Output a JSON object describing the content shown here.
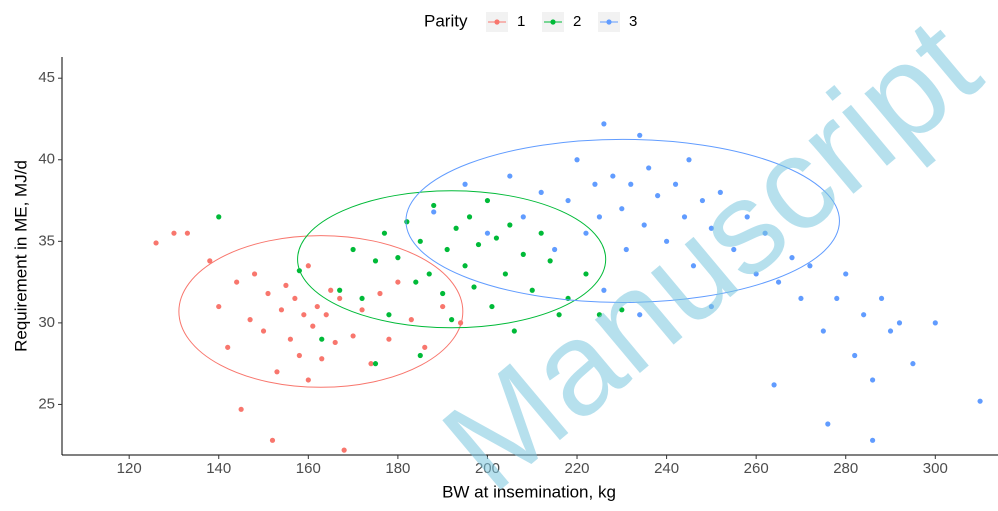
{
  "chart_data": {
    "type": "scatter",
    "x_label": "BW at insemination, kg",
    "y_label": "Requirement in ME, MJ/d",
    "legend_title": "Parity",
    "legend_position": "top",
    "watermark": "Manuscript",
    "xlim": [
      105,
      314
    ],
    "ylim": [
      21.9,
      46.3
    ],
    "xticks": [
      120,
      140,
      160,
      180,
      200,
      220,
      240,
      260,
      280,
      300
    ],
    "yticks": [
      25,
      30,
      35,
      40,
      45
    ],
    "grid": false,
    "series": [
      {
        "name": "1",
        "color": "#F8766D",
        "x": [
          126,
          130,
          133,
          138,
          140,
          142,
          144,
          145,
          147,
          148,
          150,
          151,
          152,
          153,
          154,
          155,
          156,
          157,
          158,
          159,
          160,
          160,
          161,
          162,
          163,
          164,
          165,
          166,
          167,
          168,
          170,
          172,
          174,
          176,
          178,
          180,
          183,
          186,
          190,
          194
        ],
        "values": [
          34.9,
          35.5,
          35.5,
          33.8,
          31.0,
          28.5,
          32.5,
          24.7,
          30.2,
          33.0,
          29.5,
          31.8,
          22.8,
          27.0,
          30.8,
          32.3,
          29.0,
          31.5,
          28.0,
          30.5,
          33.5,
          26.5,
          29.8,
          31.0,
          27.8,
          30.5,
          32.0,
          28.8,
          31.5,
          22.2,
          29.2,
          30.8,
          27.5,
          31.8,
          29.0,
          32.5,
          30.2,
          28.5,
          31.0,
          30.0
        ],
        "ellipse": {
          "cx": 162.8,
          "cy": 30.7,
          "rx": 31.7,
          "ry": 4.65
        }
      },
      {
        "name": "2",
        "color": "#00BA38",
        "x": [
          140,
          158,
          163,
          167,
          170,
          172,
          175,
          177,
          178,
          180,
          182,
          184,
          185,
          187,
          188,
          190,
          191,
          192,
          193,
          195,
          196,
          197,
          198,
          200,
          201,
          202,
          204,
          205,
          206,
          208,
          210,
          212,
          214,
          216,
          218,
          222,
          225,
          230,
          175,
          185
        ],
        "values": [
          36.5,
          33.2,
          29.0,
          32.0,
          34.5,
          31.5,
          33.8,
          35.5,
          30.5,
          34.0,
          36.2,
          32.5,
          35.0,
          33.0,
          37.2,
          31.8,
          34.5,
          30.2,
          35.8,
          33.5,
          36.5,
          32.2,
          34.8,
          37.5,
          31.0,
          35.2,
          33.0,
          36.0,
          29.5,
          34.2,
          32.0,
          35.5,
          33.8,
          30.5,
          31.5,
          33.0,
          30.5,
          30.8,
          27.5,
          28.0
        ],
        "ellipse": {
          "cx": 192,
          "cy": 33.9,
          "rx": 34.4,
          "ry": 4.2
        }
      },
      {
        "name": "3",
        "color": "#619CFF",
        "x": [
          188,
          195,
          200,
          205,
          208,
          212,
          215,
          218,
          220,
          222,
          224,
          225,
          226,
          228,
          230,
          231,
          232,
          234,
          235,
          236,
          238,
          240,
          242,
          244,
          245,
          246,
          248,
          250,
          252,
          255,
          258,
          260,
          262,
          265,
          268,
          270,
          272,
          275,
          278,
          280,
          282,
          284,
          286,
          288,
          290,
          292,
          295,
          300,
          310,
          226,
          234,
          250,
          264,
          276,
          286
        ],
        "values": [
          36.8,
          38.5,
          35.5,
          39.0,
          36.5,
          38.0,
          34.5,
          37.5,
          40.0,
          35.5,
          38.5,
          36.5,
          42.2,
          39.0,
          37.0,
          34.5,
          38.5,
          41.5,
          36.0,
          39.5,
          37.8,
          35.0,
          38.5,
          36.5,
          40.0,
          33.5,
          37.5,
          35.8,
          38.0,
          34.5,
          36.5,
          33.0,
          35.5,
          32.5,
          34.0,
          31.5,
          33.5,
          29.5,
          31.5,
          33.0,
          28.0,
          30.5,
          26.5,
          31.5,
          29.5,
          30.0,
          27.5,
          30.0,
          25.2,
          32.0,
          30.5,
          31.0,
          26.2,
          23.8,
          22.8
        ],
        "ellipse": {
          "cx": 230.2,
          "cy": 36.25,
          "rx": 48.4,
          "ry": 5.0
        }
      }
    ]
  }
}
